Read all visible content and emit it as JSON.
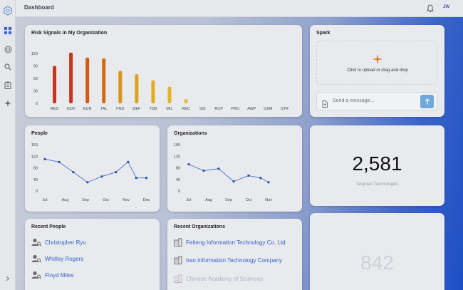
{
  "header": {
    "title": "Dashboard",
    "user_initials": "JW"
  },
  "sidebar": {
    "icons": [
      "logo-icon",
      "grid-icon",
      "target-icon",
      "search-icon",
      "clipboard-icon",
      "sparkle-icon"
    ],
    "expand_icon": "chevron-right-icon"
  },
  "risk_signals": {
    "title": "Risk Signals in My Organization",
    "chart_data": {
      "type": "bar",
      "categories": [
        "RES",
        "GOV",
        "EUN",
        "TAL",
        "FND",
        "DEF",
        "TDB",
        "MIL",
        "REC",
        "SIS",
        "RCP",
        "PRO",
        "AWP",
        "CEM",
        "STR"
      ],
      "values": [
        90,
        122,
        110,
        108,
        78,
        70,
        55,
        40,
        10,
        0,
        0,
        0,
        0,
        0,
        0
      ],
      "ylim": [
        0,
        120
      ],
      "yticks": [
        0,
        30,
        60,
        90,
        120
      ],
      "colors": [
        "#c9351b",
        "#c9351b",
        "#d25a14",
        "#d26a14",
        "#dd9417",
        "#e0a11a",
        "#e2aa1e",
        "#e6b322",
        "#efb74a",
        "#efb74a",
        "#efb74a",
        "#efb74a",
        "#efb74a",
        "#efb74a",
        "#efb74a"
      ]
    }
  },
  "spark": {
    "title": "Spark",
    "upload_text": "Click to upload or drag and drop",
    "message_placeholder": "Send a message..."
  },
  "people_chart": {
    "title": "People",
    "chart_data": {
      "type": "line",
      "categories": [
        "Jul",
        "Aug",
        "Sep",
        "Oct",
        "Nov",
        "Dec"
      ],
      "x": [
        0,
        0.7,
        1.4,
        2.1,
        2.8,
        3.5,
        4.1,
        4.5,
        5
      ],
      "values": [
        110,
        100,
        65,
        30,
        50,
        65,
        100,
        45,
        45
      ],
      "ylim": [
        0,
        160
      ],
      "yticks": [
        0,
        40,
        80,
        120,
        160
      ]
    }
  },
  "organizations_chart": {
    "title": "Organizations",
    "chart_data": {
      "type": "line",
      "categories": [
        "Jul",
        "Aug",
        "Sep",
        "Oct",
        "Nov"
      ],
      "x": [
        0,
        0.75,
        1.5,
        2.25,
        3,
        3.6,
        4
      ],
      "values": [
        92,
        70,
        77,
        33,
        53,
        45,
        30
      ],
      "ylim": [
        0,
        160
      ],
      "yticks": [
        0,
        40,
        80,
        120,
        160
      ]
    }
  },
  "targeted_technologies": {
    "value": "2,581",
    "label": "Targeted Technologies"
  },
  "bottom_metric": {
    "value": "842"
  },
  "recent_people": {
    "title": "Recent People",
    "items": [
      "Christopher Ryu",
      "Whitley Rogers",
      "Floyd Miles"
    ]
  },
  "recent_organizations": {
    "title": "Recent Organizations",
    "items": [
      "Feiteng Information Technology Co. Ltd.",
      "Iran Information Technology Company",
      "Chinese Academy of Sciences"
    ]
  },
  "colors": {
    "accent": "#2f64c6",
    "line": "#2e66c4",
    "send_button": "#6fa8dc"
  }
}
